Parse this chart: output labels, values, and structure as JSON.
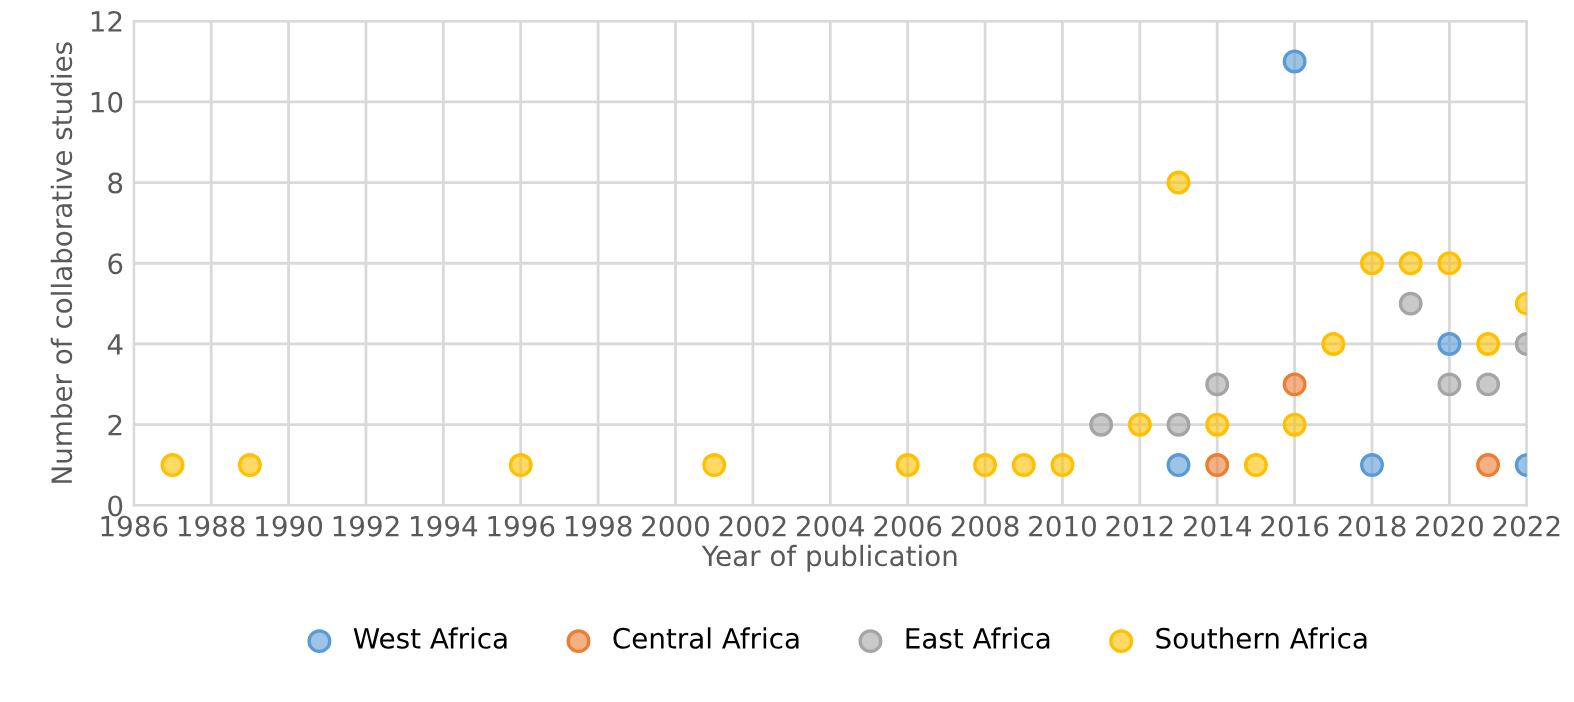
{
  "chart_data": {
    "type": "scatter",
    "xlabel": "Year of publication",
    "ylabel": "Number of collaborative studies",
    "xlim": [
      1986,
      2022
    ],
    "xticks": [
      1986,
      1988,
      1990,
      1992,
      1994,
      1996,
      1998,
      2000,
      2002,
      2004,
      2006,
      2008,
      2010,
      2012,
      2014,
      2016,
      2018,
      2020,
      2022
    ],
    "ylim": [
      0,
      12
    ],
    "yticks": [
      0,
      2,
      4,
      6,
      8,
      10,
      12
    ],
    "grid": true,
    "legend": "bottom",
    "marker": "circle",
    "series": [
      {
        "name": "West Africa",
        "color": "#5b9bd5",
        "x": [
          2013,
          2016,
          2018,
          2020,
          2022
        ],
        "values": [
          1,
          11,
          1,
          4,
          1
        ]
      },
      {
        "name": "Central Africa",
        "color": "#ed7d31",
        "x": [
          2014,
          2016,
          2021
        ],
        "values": [
          1,
          3,
          1
        ]
      },
      {
        "name": "East Africa",
        "color": "#a5a5a5",
        "x": [
          2011,
          2013,
          2014,
          2019,
          2020,
          2021,
          2022
        ],
        "values": [
          2,
          2,
          3,
          5,
          3,
          3,
          4
        ]
      },
      {
        "name": "Southern Africa",
        "color": "#ffc000",
        "x": [
          1987,
          1989,
          1996,
          2001,
          2006,
          2008,
          2009,
          2010,
          2012,
          2013,
          2014,
          2015,
          2016,
          2017,
          2018,
          2019,
          2020,
          2021,
          2022
        ],
        "values": [
          1,
          1,
          1,
          1,
          1,
          1,
          1,
          1,
          2,
          8,
          2,
          1,
          2,
          4,
          6,
          6,
          6,
          4,
          5
        ]
      }
    ]
  }
}
